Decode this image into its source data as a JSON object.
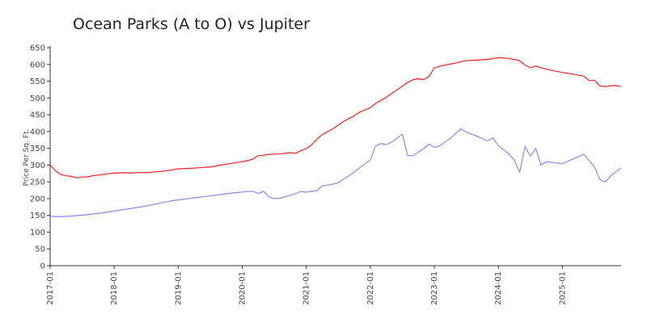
{
  "chart_data": {
    "type": "line",
    "title": "Ocean Parks (A to O) vs  Jupiter",
    "xlabel": "",
    "ylabel": "Price Per Sq. Ft.",
    "xlim": [
      "2017-01",
      "2025-12"
    ],
    "ylim": [
      0,
      650
    ],
    "y_ticks": [
      0,
      50,
      100,
      150,
      200,
      250,
      300,
      350,
      400,
      450,
      500,
      550,
      600,
      650
    ],
    "x_ticks": [
      "2017-01",
      "2018-01",
      "2019-01",
      "2020-01",
      "2021-01",
      "2022-01",
      "2023-01",
      "2024-01",
      "2025-01"
    ],
    "grid": false,
    "legend": "none",
    "series": [
      {
        "color": "#ee2222",
        "points": [
          [
            "2017-01",
            300
          ],
          [
            "2017-02",
            283
          ],
          [
            "2017-03",
            272
          ],
          [
            "2017-04",
            268
          ],
          [
            "2017-05",
            266
          ],
          [
            "2017-06",
            262
          ],
          [
            "2017-07",
            264
          ],
          [
            "2017-08",
            265
          ],
          [
            "2017-09",
            268
          ],
          [
            "2017-10",
            270
          ],
          [
            "2017-12",
            274
          ],
          [
            "2018-01",
            276
          ],
          [
            "2018-03",
            277
          ],
          [
            "2018-04",
            276
          ],
          [
            "2018-06",
            278
          ],
          [
            "2018-07",
            277
          ],
          [
            "2018-09",
            280
          ],
          [
            "2018-11",
            283
          ],
          [
            "2019-01",
            289
          ],
          [
            "2019-03",
            290
          ],
          [
            "2019-05",
            292
          ],
          [
            "2019-07",
            294
          ],
          [
            "2019-09",
            300
          ],
          [
            "2019-11",
            305
          ],
          [
            "2020-01",
            310
          ],
          [
            "2020-02",
            313
          ],
          [
            "2020-03",
            318
          ],
          [
            "2020-04",
            328
          ],
          [
            "2020-05",
            329
          ],
          [
            "2020-06",
            332
          ],
          [
            "2020-08",
            333
          ],
          [
            "2020-10",
            337
          ],
          [
            "2020-11",
            335
          ],
          [
            "2020-12",
            343
          ],
          [
            "2021-01",
            349
          ],
          [
            "2021-02",
            360
          ],
          [
            "2021-03",
            377
          ],
          [
            "2021-04",
            391
          ],
          [
            "2021-06",
            408
          ],
          [
            "2021-08",
            430
          ],
          [
            "2021-10",
            447
          ],
          [
            "2021-11",
            458
          ],
          [
            "2022-01",
            471
          ],
          [
            "2022-02",
            484
          ],
          [
            "2022-04",
            502
          ],
          [
            "2022-06",
            524
          ],
          [
            "2022-08",
            546
          ],
          [
            "2022-09",
            554
          ],
          [
            "2022-10",
            557
          ],
          [
            "2022-11",
            555
          ],
          [
            "2022-12",
            564
          ],
          [
            "2023-01",
            590
          ],
          [
            "2023-03",
            598
          ],
          [
            "2023-05",
            604
          ],
          [
            "2023-06",
            608
          ],
          [
            "2023-07",
            611
          ],
          [
            "2023-09",
            613
          ],
          [
            "2023-11",
            615
          ],
          [
            "2024-01",
            620
          ],
          [
            "2024-03",
            618
          ],
          [
            "2024-05",
            611
          ],
          [
            "2024-06",
            598
          ],
          [
            "2024-07",
            590
          ],
          [
            "2024-08",
            595
          ],
          [
            "2024-09",
            590
          ],
          [
            "2024-11",
            582
          ],
          [
            "2025-01",
            576
          ],
          [
            "2025-03",
            571
          ],
          [
            "2025-05",
            565
          ],
          [
            "2025-06",
            552
          ],
          [
            "2025-07",
            553
          ],
          [
            "2025-08",
            536
          ],
          [
            "2025-09",
            534
          ],
          [
            "2025-10",
            536
          ],
          [
            "2025-11",
            537
          ],
          [
            "2025-12",
            534
          ]
        ]
      },
      {
        "color": "#8888ee",
        "points": [
          [
            "2017-01",
            147
          ],
          [
            "2017-03",
            146
          ],
          [
            "2017-05",
            148
          ],
          [
            "2017-08",
            152
          ],
          [
            "2017-11",
            158
          ],
          [
            "2018-01",
            163
          ],
          [
            "2018-04",
            170
          ],
          [
            "2018-07",
            178
          ],
          [
            "2018-10",
            188
          ],
          [
            "2018-12",
            194
          ],
          [
            "2019-03",
            200
          ],
          [
            "2019-06",
            206
          ],
          [
            "2019-09",
            212
          ],
          [
            "2019-12",
            218
          ],
          [
            "2020-02",
            221
          ],
          [
            "2020-03",
            222
          ],
          [
            "2020-04",
            215
          ],
          [
            "2020-05",
            222
          ],
          [
            "2020-06",
            205
          ],
          [
            "2020-07",
            200
          ],
          [
            "2020-08",
            201
          ],
          [
            "2020-10",
            210
          ],
          [
            "2020-11",
            215
          ],
          [
            "2020-12",
            221
          ],
          [
            "2021-01",
            219
          ],
          [
            "2021-03",
            224
          ],
          [
            "2021-04",
            238
          ],
          [
            "2021-05",
            240
          ],
          [
            "2021-07",
            247
          ],
          [
            "2021-08",
            258
          ],
          [
            "2021-10",
            279
          ],
          [
            "2021-11",
            292
          ],
          [
            "2022-01",
            315
          ],
          [
            "2022-02",
            357
          ],
          [
            "2022-03",
            364
          ],
          [
            "2022-04",
            361
          ],
          [
            "2022-05",
            368
          ],
          [
            "2022-06",
            380
          ],
          [
            "2022-07",
            392
          ],
          [
            "2022-08",
            328
          ],
          [
            "2022-09",
            328
          ],
          [
            "2022-11",
            349
          ],
          [
            "2022-12",
            362
          ],
          [
            "2023-01",
            353
          ],
          [
            "2023-02",
            357
          ],
          [
            "2023-04",
            380
          ],
          [
            "2023-06",
            408
          ],
          [
            "2023-07",
            398
          ],
          [
            "2023-09",
            386
          ],
          [
            "2023-11",
            372
          ],
          [
            "2023-12",
            381
          ],
          [
            "2024-01",
            358
          ],
          [
            "2024-03",
            333
          ],
          [
            "2024-04",
            314
          ],
          [
            "2024-05",
            278
          ],
          [
            "2024-06",
            356
          ],
          [
            "2024-07",
            326
          ],
          [
            "2024-08",
            350
          ],
          [
            "2024-09",
            300
          ],
          [
            "2024-10",
            310
          ],
          [
            "2024-12",
            306
          ],
          [
            "2025-01",
            304
          ],
          [
            "2025-03",
            318
          ],
          [
            "2025-05",
            332
          ],
          [
            "2025-07",
            295
          ],
          [
            "2025-08",
            257
          ],
          [
            "2025-09",
            250
          ],
          [
            "2025-10",
            267
          ],
          [
            "2025-12",
            292
          ]
        ]
      }
    ]
  }
}
